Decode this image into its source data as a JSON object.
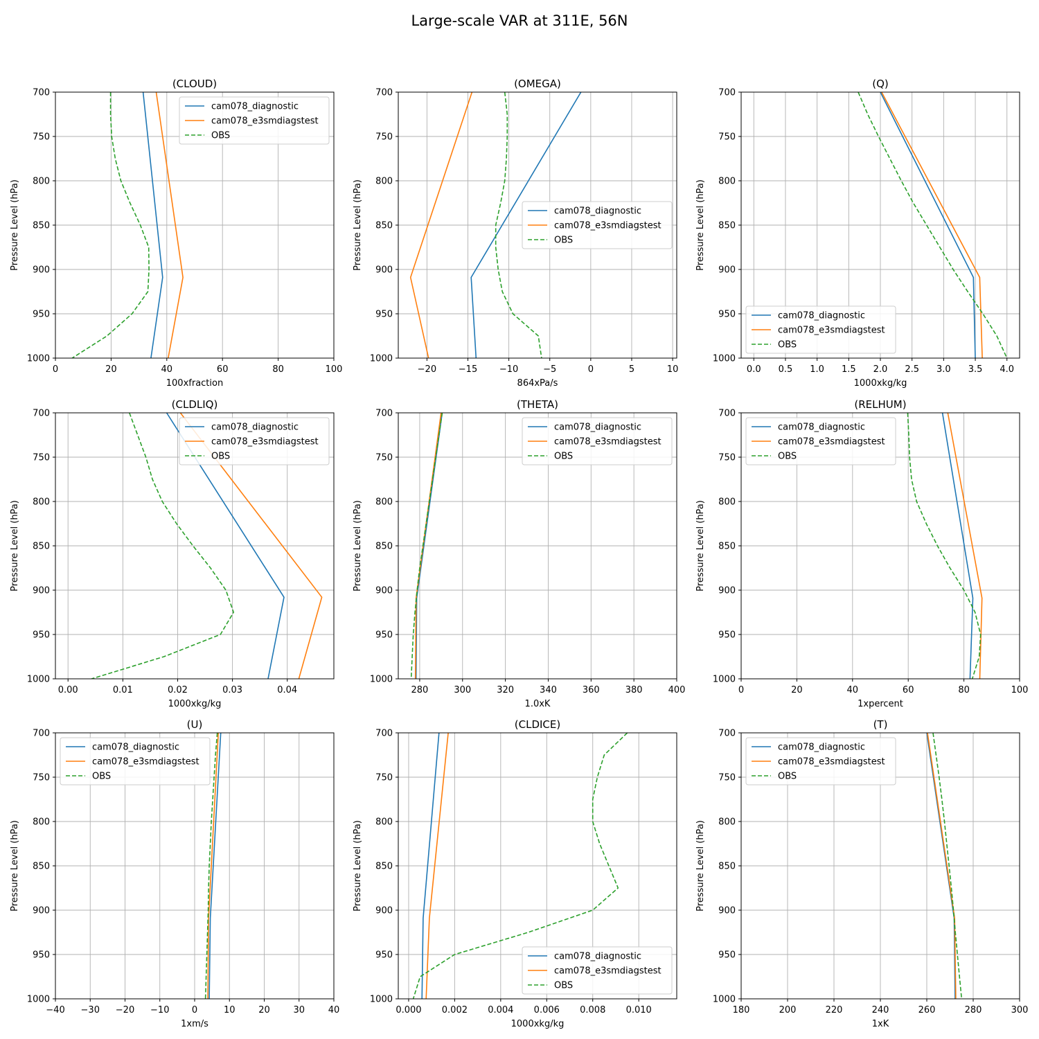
{
  "figure_title": "Large-scale VAR at 311E, 56N",
  "colors": {
    "model1": "#1f77b4",
    "model2": "#ff7f0e",
    "obs": "#2ca02c",
    "grid": "#b0b0b0"
  },
  "chart_data": [
    {
      "type": "line",
      "title": "(CLOUD)",
      "xlabel": "100xfraction",
      "ylabel": "Pressure Level (hPa)",
      "xlim": [
        0,
        100
      ],
      "ylim": [
        1000,
        700
      ],
      "y_inverted": true,
      "grid": true,
      "xticks": [
        0,
        20,
        40,
        60,
        80,
        100
      ],
      "xtick_labels": [
        "0",
        "20",
        "40",
        "60",
        "80",
        "100"
      ],
      "yticks": [
        700,
        750,
        800,
        850,
        900,
        950,
        1000
      ],
      "ytick_labels": [
        "700",
        "750",
        "800",
        "850",
        "900",
        "950",
        "1000"
      ],
      "legend": "upper-right",
      "series": [
        {
          "name": "cam078_diagnostic",
          "style": "solid",
          "color_key": "model1",
          "x": [
            31.5,
            38.5,
            34.3
          ],
          "y": [
            700,
            909,
            1000
          ]
        },
        {
          "name": "cam078_e3smdiagstest",
          "style": "solid",
          "color_key": "model2",
          "x": [
            36.2,
            45.8,
            40.5
          ],
          "y": [
            700,
            909,
            1000
          ]
        },
        {
          "name": "OBS",
          "style": "dashed",
          "color_key": "obs",
          "x": [
            19.8,
            19.8,
            20.2,
            21.5,
            23.5,
            26.8,
            30.5,
            33.5,
            33.6,
            33.2,
            27.5,
            18.5,
            6.0
          ],
          "y": [
            700,
            725,
            750,
            775,
            800,
            825,
            850,
            875,
            900,
            925,
            950,
            975,
            1000
          ]
        }
      ]
    },
    {
      "type": "line",
      "title": "(OMEGA)",
      "xlabel": "864xPa/s",
      "ylabel": "Pressure Level (hPa)",
      "xlim": [
        -23.5,
        10.5
      ],
      "ylim": [
        1000,
        700
      ],
      "y_inverted": true,
      "grid": true,
      "xticks": [
        -20,
        -15,
        -10,
        -5,
        0,
        5,
        10
      ],
      "xtick_labels": [
        "−20",
        "−15",
        "−10",
        "−5",
        "0",
        "5",
        "10"
      ],
      "yticks": [
        700,
        750,
        800,
        850,
        900,
        950,
        1000
      ],
      "ytick_labels": [
        "700",
        "750",
        "800",
        "850",
        "900",
        "950",
        "1000"
      ],
      "legend": "center-right",
      "series": [
        {
          "name": "cam078_diagnostic",
          "style": "solid",
          "color_key": "model1",
          "x": [
            -1.2,
            -14.6,
            -14.0
          ],
          "y": [
            700,
            909,
            1000
          ]
        },
        {
          "name": "cam078_e3smdiagstest",
          "style": "solid",
          "color_key": "model2",
          "x": [
            -14.5,
            -22.0,
            -19.8
          ],
          "y": [
            700,
            909,
            1000
          ]
        },
        {
          "name": "OBS",
          "style": "dashed",
          "color_key": "obs",
          "x": [
            -10.5,
            -10.2,
            -10.2,
            -10.3,
            -10.5,
            -11.0,
            -11.6,
            -11.6,
            -11.3,
            -10.8,
            -9.5,
            -6.4,
            -6.0
          ],
          "y": [
            700,
            725,
            750,
            775,
            800,
            825,
            850,
            875,
            900,
            925,
            950,
            975,
            1000
          ]
        }
      ]
    },
    {
      "type": "line",
      "title": "(Q)",
      "xlabel": "1000xkg/kg",
      "ylabel": "Pressure Level (hPa)",
      "xlim": [
        -0.2,
        4.2
      ],
      "ylim": [
        1000,
        700
      ],
      "y_inverted": true,
      "grid": true,
      "xticks": [
        0,
        0.5,
        1,
        1.5,
        2,
        2.5,
        3,
        3.5,
        4
      ],
      "xtick_labels": [
        "0.0",
        "0.5",
        "1.0",
        "1.5",
        "2.0",
        "2.5",
        "3.0",
        "3.5",
        "4.0"
      ],
      "yticks": [
        700,
        750,
        800,
        850,
        900,
        950,
        1000
      ],
      "ytick_labels": [
        "700",
        "750",
        "800",
        "850",
        "900",
        "950",
        "1000"
      ],
      "legend": "lower-left",
      "series": [
        {
          "name": "cam078_diagnostic",
          "style": "solid",
          "color_key": "model1",
          "x": [
            2.0,
            3.47,
            3.5
          ],
          "y": [
            700,
            909,
            1000
          ]
        },
        {
          "name": "cam078_e3smdiagstest",
          "style": "solid",
          "color_key": "model2",
          "x": [
            2.02,
            3.57,
            3.61
          ],
          "y": [
            700,
            909,
            1000
          ]
        },
        {
          "name": "OBS",
          "style": "dashed",
          "color_key": "obs",
          "x": [
            1.65,
            1.8,
            1.97,
            2.15,
            2.33,
            2.52,
            2.73,
            2.94,
            3.15,
            3.38,
            3.62,
            3.84,
            4.0
          ],
          "y": [
            700,
            725,
            750,
            775,
            800,
            825,
            850,
            875,
            900,
            925,
            950,
            975,
            1000
          ]
        }
      ]
    },
    {
      "type": "line",
      "title": "(CLDLIQ)",
      "xlabel": "1000xkg/kg",
      "ylabel": "Pressure Level (hPa)",
      "xlim": [
        -0.0023,
        0.0485
      ],
      "ylim": [
        1000,
        700
      ],
      "y_inverted": true,
      "grid": true,
      "xticks": [
        0,
        0.01,
        0.02,
        0.03,
        0.04
      ],
      "xtick_labels": [
        "0.00",
        "0.01",
        "0.02",
        "0.03",
        "0.04"
      ],
      "yticks": [
        700,
        750,
        800,
        850,
        900,
        950,
        1000
      ],
      "ytick_labels": [
        "700",
        "750",
        "800",
        "850",
        "900",
        "950",
        "1000"
      ],
      "legend": "upper-right",
      "series": [
        {
          "name": "cam078_diagnostic",
          "style": "solid",
          "color_key": "model1",
          "x": [
            0.018,
            0.0394,
            0.0365
          ],
          "y": [
            700,
            908,
            1000
          ]
        },
        {
          "name": "cam078_e3smdiagstest",
          "style": "solid",
          "color_key": "model2",
          "x": [
            0.0205,
            0.0463,
            0.0421
          ],
          "y": [
            700,
            908,
            1000
          ]
        },
        {
          "name": "OBS",
          "style": "dashed",
          "color_key": "obs",
          "x": [
            0.0112,
            0.0127,
            0.0142,
            0.0154,
            0.0172,
            0.0198,
            0.0228,
            0.026,
            0.0288,
            0.0302,
            0.0278,
            0.0175,
            0.0043
          ],
          "y": [
            700,
            725,
            750,
            775,
            800,
            825,
            850,
            875,
            900,
            925,
            950,
            975,
            1000
          ]
        }
      ]
    },
    {
      "type": "line",
      "title": "(THETA)",
      "xlabel": "1.0xK",
      "ylabel": "Pressure Level (hPa)",
      "xlim": [
        270,
        400
      ],
      "ylim": [
        1000,
        700
      ],
      "y_inverted": true,
      "grid": true,
      "xticks": [
        280,
        300,
        320,
        340,
        360,
        380,
        400
      ],
      "xtick_labels": [
        "280",
        "300",
        "320",
        "340",
        "360",
        "380",
        "400"
      ],
      "yticks": [
        700,
        750,
        800,
        850,
        900,
        950,
        1000
      ],
      "ytick_labels": [
        "700",
        "750",
        "800",
        "850",
        "900",
        "950",
        "1000"
      ],
      "legend": "upper-right",
      "series": [
        {
          "name": "cam078_diagnostic",
          "style": "solid",
          "color_key": "model1",
          "x": [
            290.5,
            278.6,
            278.3
          ],
          "y": [
            700,
            909,
            1000
          ]
        },
        {
          "name": "cam078_e3smdiagstest",
          "style": "solid",
          "color_key": "model2",
          "x": [
            290.0,
            278.3,
            278.0
          ],
          "y": [
            700,
            909,
            1000
          ]
        },
        {
          "name": "OBS",
          "style": "dashed",
          "color_key": "obs",
          "x": [
            290.5,
            289.0,
            287.5,
            286.0,
            284.5,
            283.0,
            281.5,
            280.0,
            278.8,
            277.8,
            277.0,
            276.5,
            276.0
          ],
          "y": [
            700,
            725,
            750,
            775,
            800,
            825,
            850,
            875,
            900,
            925,
            950,
            975,
            1000
          ]
        }
      ]
    },
    {
      "type": "line",
      "title": "(RELHUM)",
      "xlabel": "1xpercent",
      "ylabel": "Pressure Level (hPa)",
      "xlim": [
        0,
        100
      ],
      "ylim": [
        1000,
        700
      ],
      "y_inverted": true,
      "grid": true,
      "xticks": [
        0,
        20,
        40,
        60,
        80,
        100
      ],
      "xtick_labels": [
        "0",
        "20",
        "40",
        "60",
        "80",
        "100"
      ],
      "yticks": [
        700,
        750,
        800,
        850,
        900,
        950,
        1000
      ],
      "ytick_labels": [
        "700",
        "750",
        "800",
        "850",
        "900",
        "950",
        "1000"
      ],
      "legend": "upper-left",
      "series": [
        {
          "name": "cam078_diagnostic",
          "style": "solid",
          "color_key": "model1",
          "x": [
            72.3,
            83.2,
            82.2
          ],
          "y": [
            700,
            909,
            1000
          ]
        },
        {
          "name": "cam078_e3smdiagstest",
          "style": "solid",
          "color_key": "model2",
          "x": [
            74.2,
            86.5,
            85.7
          ],
          "y": [
            700,
            909,
            1000
          ]
        },
        {
          "name": "OBS",
          "style": "dashed",
          "color_key": "obs",
          "x": [
            59.8,
            60.2,
            60.5,
            61.2,
            63.0,
            66.5,
            70.5,
            75.0,
            80.0,
            84.0,
            86.0,
            85.5,
            83.0
          ],
          "y": [
            700,
            725,
            750,
            775,
            800,
            825,
            850,
            875,
            900,
            925,
            950,
            975,
            1000
          ]
        }
      ]
    },
    {
      "type": "line",
      "title": "(U)",
      "xlabel": "1xm/s",
      "ylabel": "Pressure Level (hPa)",
      "xlim": [
        -40,
        40
      ],
      "ylim": [
        1000,
        700
      ],
      "y_inverted": true,
      "grid": true,
      "xticks": [
        -40,
        -30,
        -20,
        -10,
        0,
        10,
        20,
        30,
        40
      ],
      "xtick_labels": [
        "−40",
        "−30",
        "−20",
        "−10",
        "0",
        "10",
        "20",
        "30",
        "40"
      ],
      "yticks": [
        700,
        750,
        800,
        850,
        900,
        950,
        1000
      ],
      "ytick_labels": [
        "700",
        "750",
        "800",
        "850",
        "900",
        "950",
        "1000"
      ],
      "legend": "upper-left",
      "series": [
        {
          "name": "cam078_diagnostic",
          "style": "solid",
          "color_key": "model1",
          "x": [
            7.5,
            4.5,
            4.2
          ],
          "y": [
            700,
            909,
            1000
          ]
        },
        {
          "name": "cam078_e3smdiagstest",
          "style": "solid",
          "color_key": "model2",
          "x": [
            6.8,
            4.0,
            3.8
          ],
          "y": [
            700,
            909,
            1000
          ]
        },
        {
          "name": "OBS",
          "style": "dashed",
          "color_key": "obs",
          "x": [
            6.5,
            6.0,
            5.6,
            5.2,
            4.8,
            4.5,
            4.2,
            4.0,
            3.9,
            3.7,
            3.5,
            3.3,
            3.1
          ],
          "y": [
            700,
            725,
            750,
            775,
            800,
            825,
            850,
            875,
            900,
            925,
            950,
            975,
            1000
          ]
        }
      ]
    },
    {
      "type": "line",
      "title": "(CLDICE)",
      "xlabel": "1000xkg/kg",
      "ylabel": "Pressure Level (hPa)",
      "xlim": [
        -0.00045,
        0.01165
      ],
      "ylim": [
        1000,
        700
      ],
      "y_inverted": true,
      "grid": true,
      "xticks": [
        0,
        0.002,
        0.004,
        0.006,
        0.008,
        0.01
      ],
      "xtick_labels": [
        "0.000",
        "0.002",
        "0.004",
        "0.006",
        "0.008",
        "0.010"
      ],
      "yticks": [
        700,
        750,
        800,
        850,
        900,
        950,
        1000
      ],
      "ytick_labels": [
        "700",
        "750",
        "800",
        "850",
        "900",
        "950",
        "1000"
      ],
      "legend": "lower-right",
      "series": [
        {
          "name": "cam078_diagnostic",
          "style": "solid",
          "color_key": "model1",
          "x": [
            0.00132,
            0.00063,
            0.00058
          ],
          "y": [
            700,
            909,
            1000
          ]
        },
        {
          "name": "cam078_e3smdiagstest",
          "style": "solid",
          "color_key": "model2",
          "x": [
            0.00172,
            0.0009,
            0.00076
          ],
          "y": [
            700,
            909,
            1000
          ]
        },
        {
          "name": "OBS",
          "style": "dashed",
          "color_key": "obs",
          "x": [
            0.0095,
            0.0085,
            0.0082,
            0.008,
            0.008,
            0.0083,
            0.0087,
            0.0091,
            0.008,
            0.0052,
            0.002,
            0.0005,
            0.0002
          ],
          "y": [
            700,
            725,
            750,
            775,
            800,
            825,
            850,
            875,
            900,
            925,
            950,
            975,
            1000
          ]
        }
      ]
    },
    {
      "type": "line",
      "title": "(T)",
      "xlabel": "1xK",
      "ylabel": "Pressure Level (hPa)",
      "xlim": [
        180,
        300
      ],
      "ylim": [
        1000,
        700
      ],
      "y_inverted": true,
      "grid": true,
      "xticks": [
        180,
        200,
        220,
        240,
        260,
        280,
        300
      ],
      "xtick_labels": [
        "180",
        "200",
        "220",
        "240",
        "260",
        "280",
        "300"
      ],
      "yticks": [
        700,
        750,
        800,
        850,
        900,
        950,
        1000
      ],
      "ytick_labels": [
        "700",
        "750",
        "800",
        "850",
        "900",
        "950",
        "1000"
      ],
      "legend": "upper-left",
      "series": [
        {
          "name": "cam078_diagnostic",
          "style": "solid",
          "color_key": "model1",
          "x": [
            260.0,
            271.8,
            272.2
          ],
          "y": [
            700,
            909,
            1000
          ]
        },
        {
          "name": "cam078_e3smdiagstest",
          "style": "solid",
          "color_key": "model2",
          "x": [
            260.3,
            272.0,
            272.5
          ],
          "y": [
            700,
            909,
            1000
          ]
        },
        {
          "name": "OBS",
          "style": "dashed",
          "color_key": "obs",
          "x": [
            262.7,
            264.0,
            265.3,
            266.5,
            267.6,
            268.6,
            269.6,
            270.6,
            271.5,
            272.3,
            273.2,
            274.1,
            275.0
          ],
          "y": [
            700,
            725,
            750,
            775,
            800,
            825,
            850,
            875,
            900,
            925,
            950,
            975,
            1000
          ]
        }
      ]
    }
  ]
}
